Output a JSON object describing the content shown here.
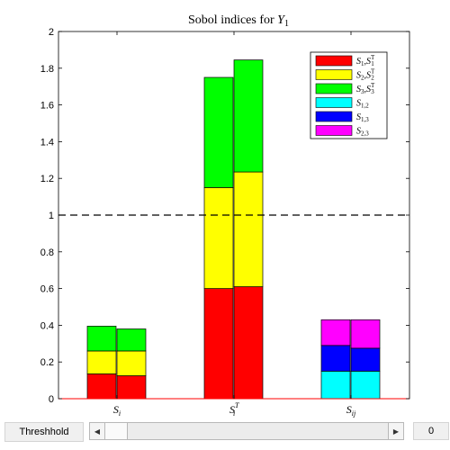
{
  "chart_data": {
    "type": "bar",
    "title": "Sobol indices for Y",
    "title_subscript": "1",
    "categories": [
      {
        "base": "S",
        "sub": "i",
        "sup": ""
      },
      {
        "base": "S",
        "sub": "i",
        "sup": "T"
      },
      {
        "base": "S",
        "sub": "ij",
        "sup": ""
      }
    ],
    "ylim": [
      0,
      2
    ],
    "yticks": [
      "0",
      "0.2",
      "0.4",
      "0.6",
      "0.8",
      "1",
      "1.2",
      "1.4",
      "1.6",
      "1.8",
      "2"
    ],
    "threshold_line": 1,
    "groups": [
      {
        "category": 0,
        "bars": [
          [
            {
              "series": 0,
              "value": 0.135
            },
            {
              "series": 1,
              "value": 0.125
            },
            {
              "series": 2,
              "value": 0.135
            }
          ],
          [
            {
              "series": 0,
              "value": 0.125
            },
            {
              "series": 1,
              "value": 0.135
            },
            {
              "series": 2,
              "value": 0.12
            }
          ]
        ]
      },
      {
        "category": 1,
        "bars": [
          [
            {
              "series": 0,
              "value": 0.6
            },
            {
              "series": 1,
              "value": 0.55
            },
            {
              "series": 2,
              "value": 0.6
            }
          ],
          [
            {
              "series": 0,
              "value": 0.61
            },
            {
              "series": 1,
              "value": 0.625
            },
            {
              "series": 2,
              "value": 0.61
            }
          ]
        ]
      },
      {
        "category": 2,
        "bars": [
          [
            {
              "series": 3,
              "value": 0.15
            },
            {
              "series": 4,
              "value": 0.14
            },
            {
              "series": 5,
              "value": 0.14
            }
          ],
          [
            {
              "series": 3,
              "value": 0.15
            },
            {
              "series": 4,
              "value": 0.125
            },
            {
              "series": 5,
              "value": 0.155
            }
          ]
        ]
      }
    ],
    "series": [
      {
        "label": "S1,S1T",
        "color": "#ff0000"
      },
      {
        "label": "S2,S2T",
        "color": "#ffff00"
      },
      {
        "label": "S3,S3T",
        "color": "#00ff00"
      },
      {
        "label": "S1,2",
        "color": "#00ffff"
      },
      {
        "label": "S1,3",
        "color": "#0000ff"
      },
      {
        "label": "S2,3",
        "color": "#ff00ff"
      }
    ],
    "legend_entries": [
      {
        "base": "S",
        "sub": "1",
        "base2": "S",
        "sub2": "1",
        "sup2": "T"
      },
      {
        "base": "S",
        "sub": "2",
        "base2": "S",
        "sub2": "2",
        "sup2": "T"
      },
      {
        "base": "S",
        "sub": "3",
        "base2": "S",
        "sub2": "3",
        "sup2": "T"
      },
      {
        "base": "S",
        "sub": "1,2"
      },
      {
        "base": "S",
        "sub": "1,3"
      },
      {
        "base": "S",
        "sub": "2,3"
      }
    ],
    "legend_position": "top-right",
    "grid": false
  },
  "controls": {
    "threshold_label": "Threshhold",
    "threshold_value": "0",
    "slider_value_fraction": 0,
    "left_arrow_icon": "triangle-left",
    "right_arrow_icon": "triangle-right"
  }
}
